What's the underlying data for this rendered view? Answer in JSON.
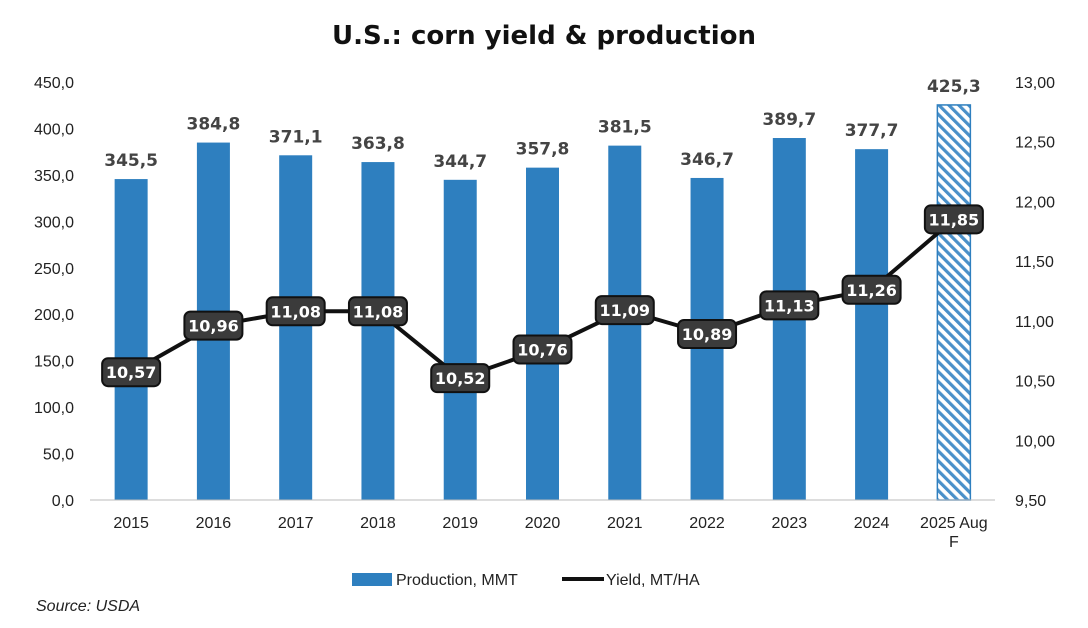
{
  "chart_data": {
    "type": "bar",
    "title": "U.S.: corn yield & production",
    "categories": [
      "2015",
      "2016",
      "2017",
      "2018",
      "2019",
      "2020",
      "2021",
      "2022",
      "2023",
      "2024",
      "2025 Aug F"
    ],
    "series": [
      {
        "name": "Production, MMT",
        "type": "bar",
        "axis": "left",
        "color": "#2E7FBF",
        "values": [
          345.5,
          384.8,
          371.1,
          363.8,
          344.7,
          357.8,
          381.5,
          346.7,
          389.7,
          377.7,
          425.3
        ],
        "labels": [
          "345,5",
          "384,8",
          "371,1",
          "363,8",
          "344,7",
          "357,8",
          "381,5",
          "346,7",
          "389,7",
          "377,7",
          "425,3"
        ],
        "forecast_index": 10
      },
      {
        "name": "Yield, MT/HA",
        "type": "line",
        "axis": "right",
        "color": "#111111",
        "values": [
          10.57,
          10.96,
          11.08,
          11.08,
          10.52,
          10.76,
          11.09,
          10.89,
          11.13,
          11.26,
          11.85
        ],
        "labels": [
          "10,57",
          "10,96",
          "11,08",
          "11,08",
          "10,52",
          "10,76",
          "11,09",
          "10,89",
          "11,13",
          "11,26",
          "11,85"
        ]
      }
    ],
    "y_left": {
      "min": 0,
      "max": 450,
      "step": 50,
      "ticks": [
        "0,0",
        "50,0",
        "100,0",
        "150,0",
        "200,0",
        "250,0",
        "300,0",
        "350,0",
        "400,0",
        "450,0"
      ]
    },
    "y_right": {
      "min": 9.5,
      "max": 13.0,
      "step": 0.5,
      "ticks": [
        "9,50",
        "10,00",
        "10,50",
        "11,00",
        "11,50",
        "12,00",
        "12,50",
        "13,00"
      ]
    },
    "grid": false,
    "legend": "bottom-center",
    "source": "Source: USDA"
  }
}
